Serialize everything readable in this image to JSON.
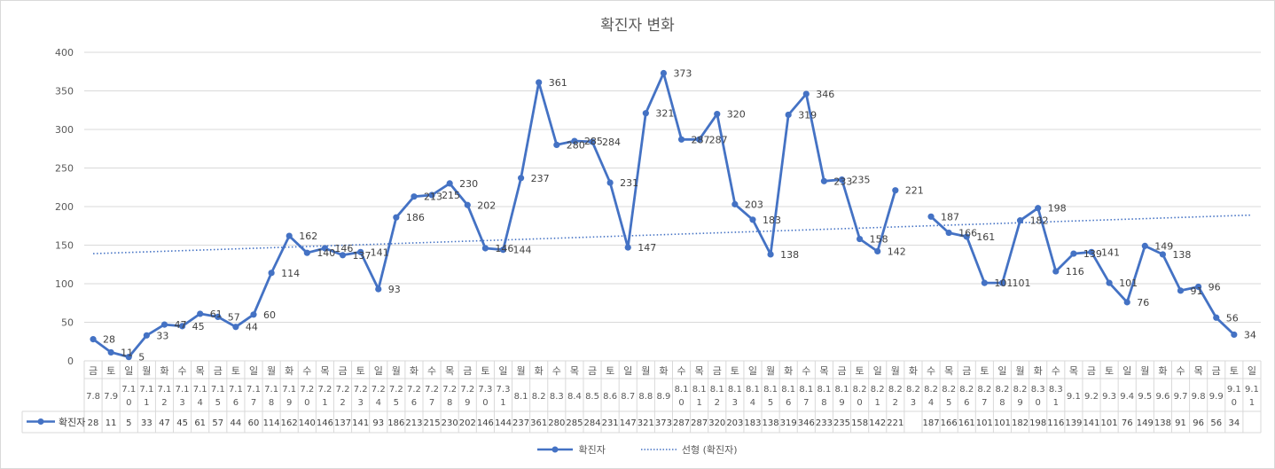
{
  "chart_data": {
    "type": "line",
    "title": "확진자 변화",
    "series_name": "확진자",
    "trend_label": "선형 (확진자)",
    "series_color": "#4472c4",
    "ylim": [
      0,
      400
    ],
    "yticks": [
      0,
      50,
      100,
      150,
      200,
      250,
      300,
      350,
      400
    ],
    "categories": [
      {
        "day": "금",
        "date": "7.8"
      },
      {
        "day": "토",
        "date": "7.9"
      },
      {
        "day": "일",
        "date": "7.10"
      },
      {
        "day": "월",
        "date": "7.11"
      },
      {
        "day": "화",
        "date": "7.12"
      },
      {
        "day": "수",
        "date": "7.13"
      },
      {
        "day": "목",
        "date": "7.14"
      },
      {
        "day": "금",
        "date": "7.15"
      },
      {
        "day": "토",
        "date": "7.16"
      },
      {
        "day": "일",
        "date": "7.17"
      },
      {
        "day": "월",
        "date": "7.18"
      },
      {
        "day": "화",
        "date": "7.19"
      },
      {
        "day": "수",
        "date": "7.20"
      },
      {
        "day": "목",
        "date": "7.21"
      },
      {
        "day": "금",
        "date": "7.22"
      },
      {
        "day": "토",
        "date": "7.23"
      },
      {
        "day": "일",
        "date": "7.24"
      },
      {
        "day": "월",
        "date": "7.25"
      },
      {
        "day": "화",
        "date": "7.26"
      },
      {
        "day": "수",
        "date": "7.27"
      },
      {
        "day": "목",
        "date": "7.28"
      },
      {
        "day": "금",
        "date": "7.29"
      },
      {
        "day": "토",
        "date": "7.30"
      },
      {
        "day": "일",
        "date": "7.31"
      },
      {
        "day": "월",
        "date": "8.1"
      },
      {
        "day": "화",
        "date": "8.2"
      },
      {
        "day": "수",
        "date": "8.3"
      },
      {
        "day": "목",
        "date": "8.4"
      },
      {
        "day": "금",
        "date": "8.5"
      },
      {
        "day": "토",
        "date": "8.6"
      },
      {
        "day": "일",
        "date": "8.7"
      },
      {
        "day": "월",
        "date": "8.8"
      },
      {
        "day": "화",
        "date": "8.9"
      },
      {
        "day": "수",
        "date": "8.10"
      },
      {
        "day": "목",
        "date": "8.11"
      },
      {
        "day": "금",
        "date": "8.12"
      },
      {
        "day": "토",
        "date": "8.13"
      },
      {
        "day": "일",
        "date": "8.14"
      },
      {
        "day": "월",
        "date": "8.15"
      },
      {
        "day": "화",
        "date": "8.16"
      },
      {
        "day": "수",
        "date": "8.17"
      },
      {
        "day": "목",
        "date": "8.18"
      },
      {
        "day": "금",
        "date": "8.19"
      },
      {
        "day": "토",
        "date": "8.20"
      },
      {
        "day": "일",
        "date": "8.21"
      },
      {
        "day": "월",
        "date": "8.22"
      },
      {
        "day": "화",
        "date": "8.23"
      },
      {
        "day": "수",
        "date": "8.24"
      },
      {
        "day": "목",
        "date": "8.25"
      },
      {
        "day": "금",
        "date": "8.26"
      },
      {
        "day": "토",
        "date": "8.27"
      },
      {
        "day": "일",
        "date": "8.28"
      },
      {
        "day": "월",
        "date": "8.29"
      },
      {
        "day": "화",
        "date": "8.30"
      },
      {
        "day": "수",
        "date": "8.31"
      },
      {
        "day": "목",
        "date": "9.1"
      },
      {
        "day": "금",
        "date": "9.2"
      },
      {
        "day": "토",
        "date": "9.3"
      },
      {
        "day": "일",
        "date": "9.4"
      },
      {
        "day": "월",
        "date": "9.5"
      },
      {
        "day": "화",
        "date": "9.6"
      },
      {
        "day": "수",
        "date": "9.7"
      },
      {
        "day": "목",
        "date": "9.8"
      },
      {
        "day": "금",
        "date": "9.9"
      },
      {
        "day": "토",
        "date": "9.10"
      },
      {
        "day": "일",
        "date": "9.11"
      }
    ],
    "values": [
      28,
      11,
      5,
      33,
      47,
      45,
      61,
      57,
      44,
      60,
      114,
      162,
      140,
      146,
      137,
      141,
      93,
      186,
      213,
      215,
      230,
      202,
      146,
      144,
      237,
      361,
      280,
      285,
      284,
      231,
      147,
      321,
      373,
      287,
      287,
      320,
      203,
      183,
      138,
      319,
      346,
      233,
      235,
      158,
      142,
      221,
      null,
      187,
      166,
      161,
      101,
      101,
      182,
      198,
      116,
      139,
      141,
      101,
      76,
      149,
      138,
      91,
      96,
      56,
      34,
      null
    ],
    "trend": {
      "start": 139,
      "end": 189
    }
  }
}
